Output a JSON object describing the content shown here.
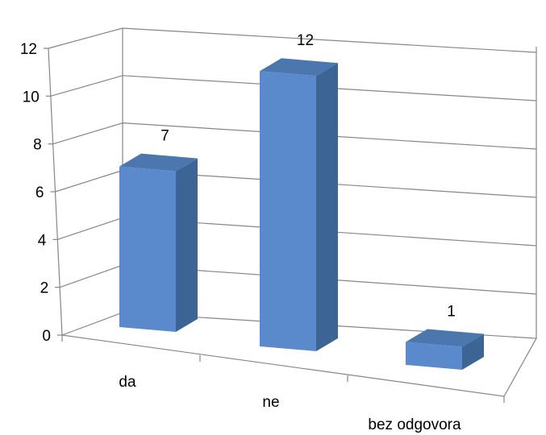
{
  "chart_data": {
    "type": "bar",
    "style": "3d-column",
    "title": "",
    "xlabel": "",
    "ylabel": "",
    "categories": [
      "da",
      "ne",
      "bez odgovora"
    ],
    "values": [
      7,
      12,
      1
    ],
    "data_labels": [
      "7",
      "12",
      "1"
    ],
    "ylim": [
      0,
      12
    ],
    "yticks": [
      "0",
      "2",
      "4",
      "6",
      "8",
      "10",
      "12"
    ],
    "grid": true,
    "legend": "none",
    "colors": {
      "bar_front": "#5A8ACB",
      "bar_side": "#3C6595",
      "bar_top": "#4B76AE",
      "gridline": "#868686"
    }
  }
}
